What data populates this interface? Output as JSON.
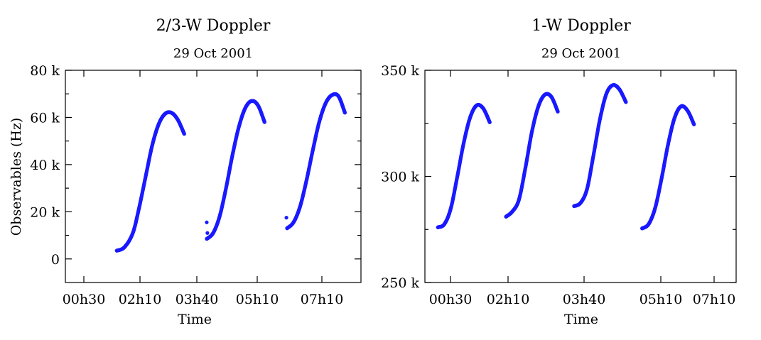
{
  "chart_data": [
    {
      "type": "scatter",
      "title": "2/3-W Doppler",
      "subtitle": "29 Oct 2001",
      "xlabel": "Time",
      "ylabel": "Observables (Hz)",
      "xlim": [
        "00h00",
        "07h40"
      ],
      "ylim": [
        -10000,
        80000
      ],
      "xticks": [
        "00h30",
        "02h10",
        "03h40",
        "05h10",
        "07h10"
      ],
      "yticks": [
        {
          "value": 0,
          "label": "0"
        },
        {
          "value": 20000,
          "label": "20 k"
        },
        {
          "value": 40000,
          "label": "40 k"
        },
        {
          "value": 60000,
          "label": "60 k"
        },
        {
          "value": 80000,
          "label": "80 k"
        }
      ],
      "color": "#1a1aff",
      "series": [
        {
          "x": [
            "01h20",
            "01h32",
            "01h45",
            "01h55",
            "02h05",
            "02h15",
            "02h25",
            "02h35",
            "02h45",
            "02h55",
            "03h05"
          ],
          "y": [
            3500,
            5000,
            11000,
            22000,
            35000,
            48000,
            57000,
            61500,
            62000,
            59000,
            53000
          ]
        },
        {
          "x": [
            "03h40",
            "03h50",
            "04h00",
            "04h10",
            "04h20",
            "04h30",
            "04h40",
            "04h50",
            "05h00",
            "05h10"
          ],
          "y": [
            8500,
            11000,
            18000,
            30000,
            44000,
            56000,
            64000,
            67000,
            65000,
            58000
          ]
        },
        {
          "x": [
            "05h45",
            "05h55",
            "06h05",
            "06h15",
            "06h25",
            "06h35",
            "06h45",
            "06h55",
            "07h05",
            "07h15"
          ],
          "y": [
            13000,
            15500,
            22000,
            33000,
            46000,
            58000,
            66000,
            69500,
            69000,
            62000
          ]
        }
      ],
      "outliers": {
        "x": [
          "03h40",
          "03h41",
          "05h44"
        ],
        "y": [
          15500,
          11000,
          17500
        ]
      }
    },
    {
      "type": "scatter",
      "title": "1-W Doppler",
      "subtitle": "29 Oct 2001",
      "xlabel": "Time",
      "ylabel": "",
      "xlim": [
        "00h00",
        "08h00"
      ],
      "ylim": [
        250000,
        350000
      ],
      "xticks": [
        "00h30",
        "02h10",
        "03h40",
        "05h10",
        "07h10"
      ],
      "yticks": [
        {
          "value": 250000,
          "label": "250 k"
        },
        {
          "value": 300000,
          "label": "300 k"
        },
        {
          "value": 350000,
          "label": "350 k"
        }
      ],
      "color": "#1a1aff",
      "series": [
        {
          "x": [
            "00h20",
            "00h30",
            "00h40",
            "00h50",
            "01h00",
            "01h10",
            "01h20",
            "01h30",
            "01h40"
          ],
          "y": [
            276000,
            277500,
            285000,
            300000,
            316000,
            328000,
            333500,
            332000,
            325500
          ]
        },
        {
          "x": [
            "02h05",
            "02h15",
            "02h25",
            "02h35",
            "02h45",
            "02h55",
            "03h05",
            "03h15",
            "03h25"
          ],
          "y": [
            281000,
            283500,
            289000,
            304000,
            321000,
            333000,
            338500,
            337500,
            330500
          ]
        },
        {
          "x": [
            "03h50",
            "04h00",
            "04h10",
            "04h20",
            "04h30",
            "04h40",
            "04h50",
            "05h00",
            "05h10"
          ],
          "y": [
            286000,
            287500,
            294000,
            310000,
            327000,
            339000,
            343000,
            341000,
            335000
          ]
        },
        {
          "x": [
            "05h35",
            "05h45",
            "05h55",
            "06h05",
            "06h15",
            "06h25",
            "06h35",
            "06h45",
            "06h55"
          ],
          "y": [
            275500,
            277500,
            285000,
            299000,
            315000,
            327500,
            333000,
            331000,
            324500
          ]
        }
      ]
    }
  ]
}
